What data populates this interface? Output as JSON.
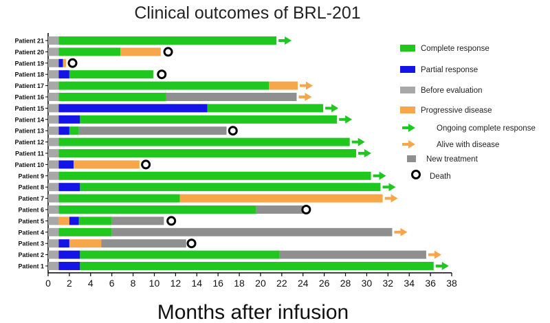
{
  "colors": {
    "complete": "#1fc71f",
    "partial": "#1414e6",
    "before": "#a8a8a8",
    "progressive": "#f7a64a",
    "new_treatment": "#8f8f8f",
    "ongoing_arrow": "#1fc71f",
    "alive_arrow": "#f7a64a",
    "death": "#000000"
  },
  "chart_data": {
    "type": "swimmer",
    "title": "Clinical outcomes of BRL-201",
    "xlabel": "Months after infusion",
    "xlim": [
      0,
      38
    ],
    "xticks": [
      0,
      2,
      4,
      6,
      8,
      10,
      12,
      14,
      16,
      18,
      20,
      22,
      24,
      26,
      28,
      30,
      32,
      34,
      36,
      38
    ],
    "patients": [
      {
        "name": "Patient 1",
        "segments": [
          {
            "s": "before",
            "a": 0,
            "b": 1
          },
          {
            "s": "partial",
            "a": 1,
            "b": 3
          },
          {
            "s": "complete",
            "a": 3,
            "b": 36.3
          }
        ],
        "marker": "ongoing",
        "marker_x": 36.3
      },
      {
        "name": "Patient 2",
        "segments": [
          {
            "s": "before",
            "a": 0,
            "b": 1
          },
          {
            "s": "partial",
            "a": 1,
            "b": 3
          },
          {
            "s": "complete",
            "a": 3,
            "b": 21.8
          },
          {
            "s": "new_treatment",
            "a": 21.8,
            "b": 35.6
          }
        ],
        "marker": "alive",
        "marker_x": 35.6
      },
      {
        "name": "Patient 3",
        "segments": [
          {
            "s": "before",
            "a": 0,
            "b": 1
          },
          {
            "s": "partial",
            "a": 1,
            "b": 2
          },
          {
            "s": "progressive",
            "a": 2,
            "b": 5
          },
          {
            "s": "new_treatment",
            "a": 5,
            "b": 13
          }
        ],
        "marker": "death",
        "marker_x": 13.5
      },
      {
        "name": "Patient 4",
        "segments": [
          {
            "s": "before",
            "a": 0,
            "b": 1
          },
          {
            "s": "complete",
            "a": 1,
            "b": 6
          },
          {
            "s": "new_treatment",
            "a": 6,
            "b": 32.4
          }
        ],
        "marker": "alive",
        "marker_x": 32.4
      },
      {
        "name": "Patient 5",
        "segments": [
          {
            "s": "before",
            "a": 0,
            "b": 1
          },
          {
            "s": "progressive",
            "a": 1,
            "b": 2
          },
          {
            "s": "partial",
            "a": 2,
            "b": 2.9
          },
          {
            "s": "complete",
            "a": 2.9,
            "b": 6
          },
          {
            "s": "new_treatment",
            "a": 6,
            "b": 10.9
          }
        ],
        "marker": "death",
        "marker_x": 11.6
      },
      {
        "name": "Patient 6",
        "segments": [
          {
            "s": "before",
            "a": 0,
            "b": 1
          },
          {
            "s": "complete",
            "a": 1,
            "b": 19.6
          },
          {
            "s": "new_treatment",
            "a": 19.6,
            "b": 24
          }
        ],
        "marker": "death",
        "marker_x": 24.3
      },
      {
        "name": "Patient 7",
        "segments": [
          {
            "s": "before",
            "a": 0,
            "b": 1
          },
          {
            "s": "complete",
            "a": 1,
            "b": 12.4
          },
          {
            "s": "progressive",
            "a": 12.4,
            "b": 31.5
          }
        ],
        "marker": "alive",
        "marker_x": 31.5
      },
      {
        "name": "Patient 8",
        "segments": [
          {
            "s": "before",
            "a": 0,
            "b": 1
          },
          {
            "s": "partial",
            "a": 1,
            "b": 3
          },
          {
            "s": "complete",
            "a": 3,
            "b": 31.3
          }
        ],
        "marker": "ongoing",
        "marker_x": 31.3
      },
      {
        "name": "Patient 9",
        "segments": [
          {
            "s": "before",
            "a": 0,
            "b": 1
          },
          {
            "s": "complete",
            "a": 1,
            "b": 30.4
          }
        ],
        "marker": "ongoing",
        "marker_x": 30.4
      },
      {
        "name": "Patient 10",
        "segments": [
          {
            "s": "before",
            "a": 0,
            "b": 1
          },
          {
            "s": "partial",
            "a": 1,
            "b": 2.4
          },
          {
            "s": "progressive",
            "a": 2.4,
            "b": 8.6
          }
        ],
        "marker": "death",
        "marker_x": 9.2
      },
      {
        "name": "Patient 11",
        "segments": [
          {
            "s": "before",
            "a": 0,
            "b": 1
          },
          {
            "s": "complete",
            "a": 1,
            "b": 29
          }
        ],
        "marker": "ongoing",
        "marker_x": 29
      },
      {
        "name": "Patient 12",
        "segments": [
          {
            "s": "before",
            "a": 0,
            "b": 1
          },
          {
            "s": "complete",
            "a": 1,
            "b": 28.4
          }
        ],
        "marker": "ongoing",
        "marker_x": 28.4
      },
      {
        "name": "Patient 13",
        "segments": [
          {
            "s": "before",
            "a": 0,
            "b": 1
          },
          {
            "s": "partial",
            "a": 1,
            "b": 2
          },
          {
            "s": "complete",
            "a": 2,
            "b": 2.9
          },
          {
            "s": "new_treatment",
            "a": 2.9,
            "b": 16.8
          }
        ],
        "marker": "death",
        "marker_x": 17.4
      },
      {
        "name": "Patient 14",
        "segments": [
          {
            "s": "before",
            "a": 0,
            "b": 1
          },
          {
            "s": "partial",
            "a": 1,
            "b": 3
          },
          {
            "s": "complete",
            "a": 3,
            "b": 27.2
          }
        ],
        "marker": "ongoing",
        "marker_x": 27.2
      },
      {
        "name": "Patient 15",
        "segments": [
          {
            "s": "before",
            "a": 0,
            "b": 1
          },
          {
            "s": "partial",
            "a": 1,
            "b": 15
          },
          {
            "s": "complete",
            "a": 15,
            "b": 25.9
          }
        ],
        "marker": "ongoing",
        "marker_x": 25.9
      },
      {
        "name": "Patient 16",
        "segments": [
          {
            "s": "before",
            "a": 0,
            "b": 1
          },
          {
            "s": "complete",
            "a": 1,
            "b": 11.1
          },
          {
            "s": "new_treatment",
            "a": 11.1,
            "b": 23.4
          }
        ],
        "marker": "alive",
        "marker_x": 23.4
      },
      {
        "name": "Patient 17",
        "segments": [
          {
            "s": "before",
            "a": 0,
            "b": 1
          },
          {
            "s": "complete",
            "a": 1,
            "b": 20.8
          },
          {
            "s": "progressive",
            "a": 20.8,
            "b": 23.5
          }
        ],
        "marker": "alive",
        "marker_x": 23.5
      },
      {
        "name": "Patient 18",
        "segments": [
          {
            "s": "before",
            "a": 0,
            "b": 1
          },
          {
            "s": "partial",
            "a": 1,
            "b": 2
          },
          {
            "s": "complete",
            "a": 2,
            "b": 9.9
          }
        ],
        "marker": "death",
        "marker_x": 10.7
      },
      {
        "name": "Patient 19",
        "segments": [
          {
            "s": "before",
            "a": 0,
            "b": 1
          },
          {
            "s": "partial",
            "a": 1,
            "b": 1.4
          },
          {
            "s": "progressive",
            "a": 1.4,
            "b": 1.7
          }
        ],
        "marker": "death",
        "marker_x": 2.3
      },
      {
        "name": "Patient 20",
        "segments": [
          {
            "s": "before",
            "a": 0,
            "b": 1
          },
          {
            "s": "complete",
            "a": 1,
            "b": 6.8
          },
          {
            "s": "progressive",
            "a": 6.8,
            "b": 10.6
          }
        ],
        "marker": "death",
        "marker_x": 11.3
      },
      {
        "name": "Patient 21",
        "segments": [
          {
            "s": "before",
            "a": 0,
            "b": 1
          },
          {
            "s": "complete",
            "a": 1,
            "b": 21.5
          }
        ],
        "marker": "ongoing",
        "marker_x": 21.5
      }
    ],
    "legend": [
      {
        "key": "complete",
        "kind": "bar",
        "label": "Complete response"
      },
      {
        "key": "partial",
        "kind": "bar",
        "label": "Partial response"
      },
      {
        "key": "before",
        "kind": "bar",
        "label": "Before evaluation"
      },
      {
        "key": "progressive",
        "kind": "bar",
        "label": "Progressive  disease"
      },
      {
        "key": "ongoing_arrow",
        "kind": "arrow",
        "label": "Ongoing complete response"
      },
      {
        "key": "alive_arrow",
        "kind": "arrow",
        "label": "Alive with disease"
      },
      {
        "key": "new_treatment",
        "kind": "bar",
        "label": "New treatment"
      },
      {
        "key": "death",
        "kind": "circle",
        "label": "Death"
      }
    ],
    "legend_position": "right"
  }
}
